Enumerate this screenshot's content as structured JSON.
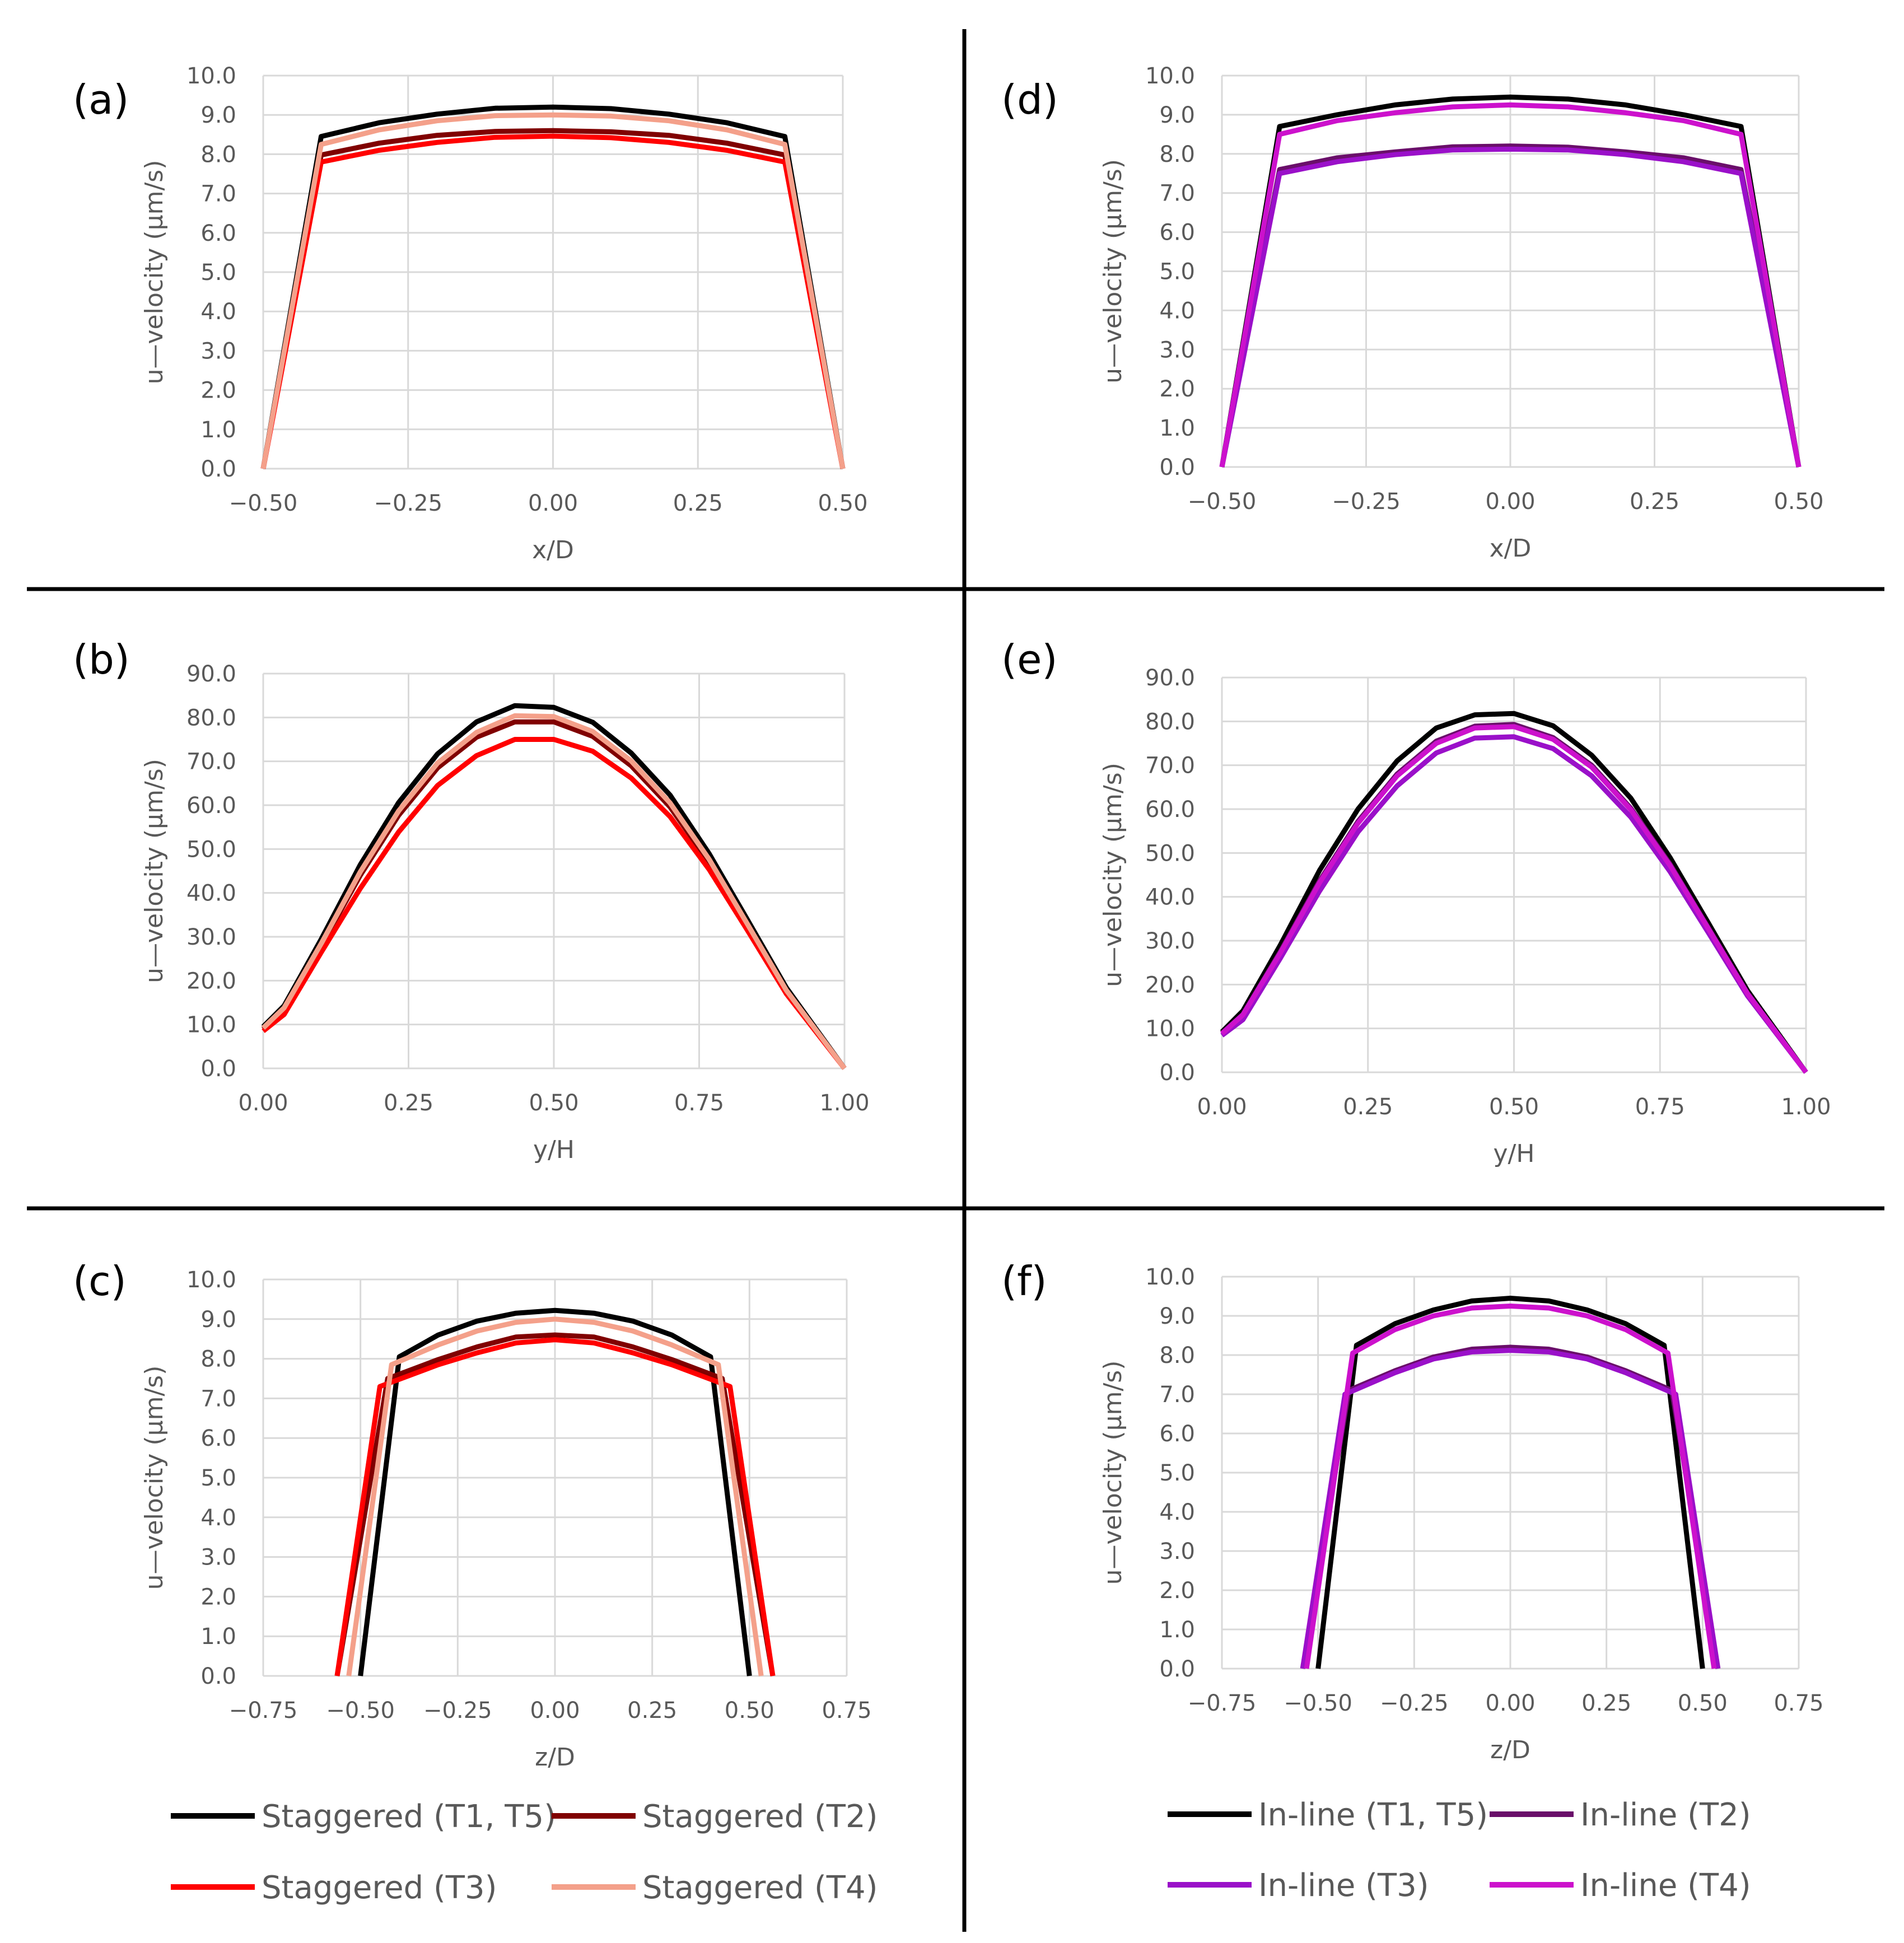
{
  "figure": {
    "colors": {
      "staggered_t1_t5": "#000000",
      "staggered_t2": "#800000",
      "staggered_t3": "#ff0000",
      "staggered_t4": "#f4a08a",
      "inline_t1_t5": "#000000",
      "inline_t2": "#6a0f6a",
      "inline_t3": "#9a10c9",
      "inline_t4": "#cc11cc",
      "grid": "#d9d9d9",
      "tick_text": "#595959",
      "divider": "#000000"
    }
  },
  "legends": [
    {
      "items": [
        {
          "label": "Staggered (T1, T5)",
          "color_key": "staggered_t1_t5"
        },
        {
          "label": "Staggered (T2)",
          "color_key": "staggered_t2"
        },
        {
          "label": "Staggered (T3)",
          "color_key": "staggered_t3"
        },
        {
          "label": "Staggered (T4)",
          "color_key": "staggered_t4"
        }
      ]
    },
    {
      "items": [
        {
          "label": "In-line (T1, T5)",
          "color_key": "inline_t1_t5"
        },
        {
          "label": "In-line (T2)",
          "color_key": "inline_t2"
        },
        {
          "label": "In-line (T3)",
          "color_key": "inline_t3"
        },
        {
          "label": "In-line (T4)",
          "color_key": "inline_t4"
        }
      ]
    }
  ],
  "chart_data": [
    {
      "panel": "(a)",
      "type": "line",
      "title": "",
      "xlabel": "x/D",
      "ylabel": "u—velocity (µm/s)",
      "xlim": [
        -0.5,
        0.5
      ],
      "ylim": [
        0,
        10
      ],
      "xticks": [
        "−0.50",
        "−0.25",
        "0.00",
        "0.25",
        "0.50"
      ],
      "yticks": [
        "0.0",
        "1.0",
        "2.0",
        "3.0",
        "4.0",
        "5.0",
        "6.0",
        "7.0",
        "8.0",
        "9.0",
        "10.0"
      ],
      "x": [
        -0.5,
        -0.4,
        -0.3,
        -0.2,
        -0.1,
        0,
        0.1,
        0.2,
        0.3,
        0.4,
        0.5
      ],
      "grid": true,
      "series": [
        {
          "name": "Staggered (T1, T5)",
          "color_key": "staggered_t1_t5",
          "values": [
            0,
            8.45,
            8.8,
            9.02,
            9.17,
            9.2,
            9.16,
            9.02,
            8.8,
            8.45,
            0
          ]
        },
        {
          "name": "Staggered (T2)",
          "color_key": "staggered_t2",
          "values": [
            0,
            7.98,
            8.28,
            8.48,
            8.58,
            8.6,
            8.57,
            8.48,
            8.28,
            7.98,
            0
          ]
        },
        {
          "name": "Staggered (T3)",
          "color_key": "staggered_t3",
          "values": [
            0,
            7.8,
            8.1,
            8.3,
            8.43,
            8.46,
            8.42,
            8.3,
            8.1,
            7.8,
            0
          ]
        },
        {
          "name": "Staggered (T4)",
          "color_key": "staggered_t4",
          "values": [
            0,
            8.25,
            8.62,
            8.85,
            8.98,
            9.0,
            8.97,
            8.85,
            8.62,
            8.25,
            0
          ]
        }
      ]
    },
    {
      "panel": "(b)",
      "type": "line",
      "title": "",
      "xlabel": "y/H",
      "ylabel": "u—velocity (µm/s)",
      "xlim": [
        0,
        1
      ],
      "ylim": [
        0,
        90
      ],
      "xticks": [
        "0.00",
        "0.25",
        "0.50",
        "0.75",
        "1.00"
      ],
      "yticks": [
        "0.0",
        "10.0",
        "20.0",
        "30.0",
        "40.0",
        "50.0",
        "60.0",
        "70.0",
        "80.0",
        "90.0"
      ],
      "x": [
        0,
        0.036,
        0.1,
        0.167,
        0.233,
        0.3,
        0.367,
        0.433,
        0.5,
        0.567,
        0.633,
        0.7,
        0.767,
        0.833,
        0.9,
        1.0
      ],
      "grid": true,
      "series": [
        {
          "name": "Staggered (T1, T5)",
          "color_key": "staggered_t1_t5",
          "values": [
            9.5,
            14.3,
            29.5,
            46.4,
            60.6,
            71.7,
            79.0,
            82.7,
            82.3,
            78.9,
            71.9,
            62.3,
            49.0,
            33.9,
            18.4,
            0
          ]
        },
        {
          "name": "Staggered (T2)",
          "color_key": "staggered_t2",
          "values": [
            9.0,
            13.6,
            28.0,
            44.0,
            57.7,
            68.5,
            75.5,
            79.0,
            79.0,
            75.7,
            69.0,
            59.6,
            47.0,
            32.4,
            17.6,
            0
          ]
        },
        {
          "name": "Staggered (T3)",
          "color_key": "staggered_t3",
          "values": [
            8.5,
            12.3,
            26.5,
            41.0,
            53.9,
            64.5,
            71.3,
            75.0,
            75.0,
            72.3,
            66.2,
            57.4,
            45.4,
            31.5,
            17.0,
            0
          ]
        },
        {
          "name": "Staggered (T4)",
          "color_key": "staggered_t4",
          "values": [
            9.2,
            13.8,
            28.5,
            44.8,
            58.7,
            69.6,
            76.6,
            80.4,
            80.2,
            76.8,
            70.1,
            60.5,
            47.7,
            32.9,
            17.8,
            0
          ]
        }
      ]
    },
    {
      "panel": "(c)",
      "type": "line",
      "title": "",
      "xlabel": "z/D",
      "ylabel": "u—velocity (µm/s)",
      "xlim": [
        -0.75,
        0.75
      ],
      "ylim": [
        0,
        10
      ],
      "xticks": [
        "−0.75",
        "−0.50",
        "−0.25",
        "0.00",
        "0.25",
        "0.50",
        "0.75"
      ],
      "yticks": [
        "0.0",
        "1.0",
        "2.0",
        "3.0",
        "4.0",
        "5.0",
        "6.0",
        "7.0",
        "8.0",
        "9.0",
        "10.0"
      ],
      "grid": true,
      "series": [
        {
          "name": "Staggered (T1, T5)",
          "color_key": "staggered_t1_t5",
          "x": [
            -0.5,
            -0.4,
            -0.3,
            -0.2,
            -0.1,
            0,
            0.1,
            0.2,
            0.3,
            0.4,
            0.5
          ],
          "values": [
            0,
            8.05,
            8.6,
            8.95,
            9.15,
            9.22,
            9.15,
            8.95,
            8.6,
            8.05,
            0
          ]
        },
        {
          "name": "Staggered (T2)",
          "color_key": "staggered_t2",
          "x": [
            -0.56,
            -0.43,
            -0.3,
            -0.2,
            -0.1,
            0,
            0.1,
            0.2,
            0.3,
            0.43,
            0.56
          ],
          "values": [
            0,
            7.5,
            7.98,
            8.3,
            8.55,
            8.6,
            8.55,
            8.3,
            7.98,
            7.5,
            0
          ]
        },
        {
          "name": "Staggered (T3)",
          "color_key": "staggered_t3",
          "x": [
            -0.56,
            -0.45,
            -0.3,
            -0.2,
            -0.1,
            0,
            0.1,
            0.2,
            0.3,
            0.45,
            0.56
          ],
          "values": [
            0,
            7.3,
            7.85,
            8.15,
            8.4,
            8.48,
            8.4,
            8.15,
            7.85,
            7.3,
            0
          ]
        },
        {
          "name": "Staggered (T4)",
          "color_key": "staggered_t4",
          "x": [
            -0.53,
            -0.42,
            -0.3,
            -0.2,
            -0.1,
            0,
            0.1,
            0.2,
            0.3,
            0.42,
            0.53
          ],
          "values": [
            0,
            7.85,
            8.35,
            8.7,
            8.92,
            9.0,
            8.92,
            8.7,
            8.35,
            7.85,
            0
          ]
        }
      ]
    },
    {
      "panel": "(d)",
      "type": "line",
      "title": "",
      "xlabel": "x/D",
      "ylabel": "u—velocity (µm/s)",
      "xlim": [
        -0.5,
        0.5
      ],
      "ylim": [
        0,
        10
      ],
      "xticks": [
        "−0.50",
        "−0.25",
        "0.00",
        "0.25",
        "0.50"
      ],
      "yticks": [
        "0.0",
        "1.0",
        "2.0",
        "3.0",
        "4.0",
        "5.0",
        "6.0",
        "7.0",
        "8.0",
        "9.0",
        "10.0"
      ],
      "x": [
        -0.5,
        -0.4,
        -0.3,
        -0.2,
        -0.1,
        0,
        0.1,
        0.2,
        0.3,
        0.4,
        0.5
      ],
      "grid": true,
      "series": [
        {
          "name": "In-line (T1, T5)",
          "color_key": "inline_t1_t5",
          "values": [
            0,
            8.7,
            9.0,
            9.25,
            9.4,
            9.45,
            9.4,
            9.25,
            9.0,
            8.7,
            0
          ]
        },
        {
          "name": "In-line (T2)",
          "color_key": "inline_t2",
          "values": [
            0,
            7.6,
            7.9,
            8.05,
            8.18,
            8.2,
            8.17,
            8.05,
            7.9,
            7.6,
            0
          ]
        },
        {
          "name": "In-line (T3)",
          "color_key": "inline_t3",
          "values": [
            0,
            7.5,
            7.8,
            7.98,
            8.1,
            8.12,
            8.1,
            7.98,
            7.8,
            7.5,
            0
          ]
        },
        {
          "name": "In-line (T4)",
          "color_key": "inline_t4",
          "values": [
            0,
            8.5,
            8.85,
            9.05,
            9.2,
            9.25,
            9.2,
            9.05,
            8.85,
            8.5,
            0
          ]
        }
      ]
    },
    {
      "panel": "(e)",
      "type": "line",
      "title": "",
      "xlabel": "y/H",
      "ylabel": "u—velocity (µm/s)",
      "xlim": [
        0,
        1
      ],
      "ylim": [
        0,
        90
      ],
      "xticks": [
        "0.00",
        "0.25",
        "0.50",
        "0.75",
        "1.00"
      ],
      "yticks": [
        "0.0",
        "10.0",
        "20.0",
        "30.0",
        "40.0",
        "50.0",
        "60.0",
        "70.0",
        "80.0",
        "90.0"
      ],
      "x": [
        0,
        0.036,
        0.1,
        0.167,
        0.233,
        0.3,
        0.367,
        0.433,
        0.5,
        0.567,
        0.633,
        0.7,
        0.767,
        0.833,
        0.9,
        1.0
      ],
      "grid": true,
      "series": [
        {
          "name": "In-line (T1, T5)",
          "color_key": "inline_t1_t5",
          "values": [
            9.2,
            14.0,
            29.0,
            46.0,
            60.0,
            71.0,
            78.5,
            81.5,
            81.8,
            79.0,
            72.3,
            62.5,
            49.0,
            34.0,
            18.6,
            0
          ]
        },
        {
          "name": "In-line (T2)",
          "color_key": "inline_t2",
          "values": [
            8.9,
            13.2,
            27.5,
            43.6,
            57.2,
            68.0,
            75.5,
            78.9,
            79.3,
            76.3,
            70.0,
            60.2,
            47.5,
            32.9,
            18.0,
            0
          ]
        },
        {
          "name": "In-line (T3)",
          "color_key": "inline_t3",
          "values": [
            8.4,
            12.0,
            26.0,
            41.3,
            54.8,
            65.3,
            72.8,
            76.2,
            76.5,
            73.8,
            67.6,
            58.2,
            45.8,
            31.8,
            17.4,
            0
          ]
        },
        {
          "name": "In-line (T4)",
          "color_key": "inline_t4",
          "values": [
            8.8,
            13.1,
            27.2,
            43.2,
            56.8,
            67.6,
            75.0,
            78.5,
            78.8,
            75.9,
            69.6,
            59.9,
            47.2,
            32.7,
            17.9,
            0
          ]
        }
      ]
    },
    {
      "panel": "(f)",
      "type": "line",
      "title": "",
      "xlabel": "z/D",
      "ylabel": "u—velocity (µm/s)",
      "xlim": [
        -0.75,
        0.75
      ],
      "ylim": [
        0,
        10
      ],
      "xticks": [
        "−0.75",
        "−0.50",
        "−0.25",
        "0.00",
        "0.25",
        "0.50",
        "0.75"
      ],
      "yticks": [
        "0.0",
        "1.0",
        "2.0",
        "3.0",
        "4.0",
        "5.0",
        "6.0",
        "7.0",
        "8.0",
        "9.0",
        "10.0"
      ],
      "grid": true,
      "series": [
        {
          "name": "In-line (T1, T5)",
          "color_key": "inline_t1_t5",
          "x": [
            -0.5,
            -0.4,
            -0.3,
            -0.2,
            -0.1,
            0,
            0.1,
            0.2,
            0.3,
            0.4,
            0.5
          ],
          "values": [
            0,
            8.25,
            8.8,
            9.15,
            9.38,
            9.45,
            9.38,
            9.15,
            8.8,
            8.25,
            0
          ]
        },
        {
          "name": "In-line (T2)",
          "color_key": "inline_t2",
          "x": [
            -0.54,
            -0.42,
            -0.3,
            -0.2,
            -0.1,
            0,
            0.1,
            0.2,
            0.3,
            0.42,
            0.54
          ],
          "values": [
            0,
            7.1,
            7.6,
            7.95,
            8.15,
            8.2,
            8.15,
            7.95,
            7.6,
            7.1,
            0
          ]
        },
        {
          "name": "In-line (T3)",
          "color_key": "inline_t3",
          "x": [
            -0.54,
            -0.43,
            -0.3,
            -0.2,
            -0.1,
            0,
            0.1,
            0.2,
            0.3,
            0.43,
            0.54
          ],
          "values": [
            0,
            7.0,
            7.55,
            7.9,
            8.08,
            8.12,
            8.08,
            7.9,
            7.55,
            7.0,
            0
          ]
        },
        {
          "name": "In-line (T4)",
          "color_key": "inline_t4",
          "x": [
            -0.53,
            -0.41,
            -0.3,
            -0.2,
            -0.1,
            0,
            0.1,
            0.2,
            0.3,
            0.41,
            0.53
          ],
          "values": [
            0,
            8.05,
            8.65,
            9.0,
            9.2,
            9.25,
            9.2,
            9.0,
            8.65,
            8.05,
            0
          ]
        }
      ]
    }
  ]
}
